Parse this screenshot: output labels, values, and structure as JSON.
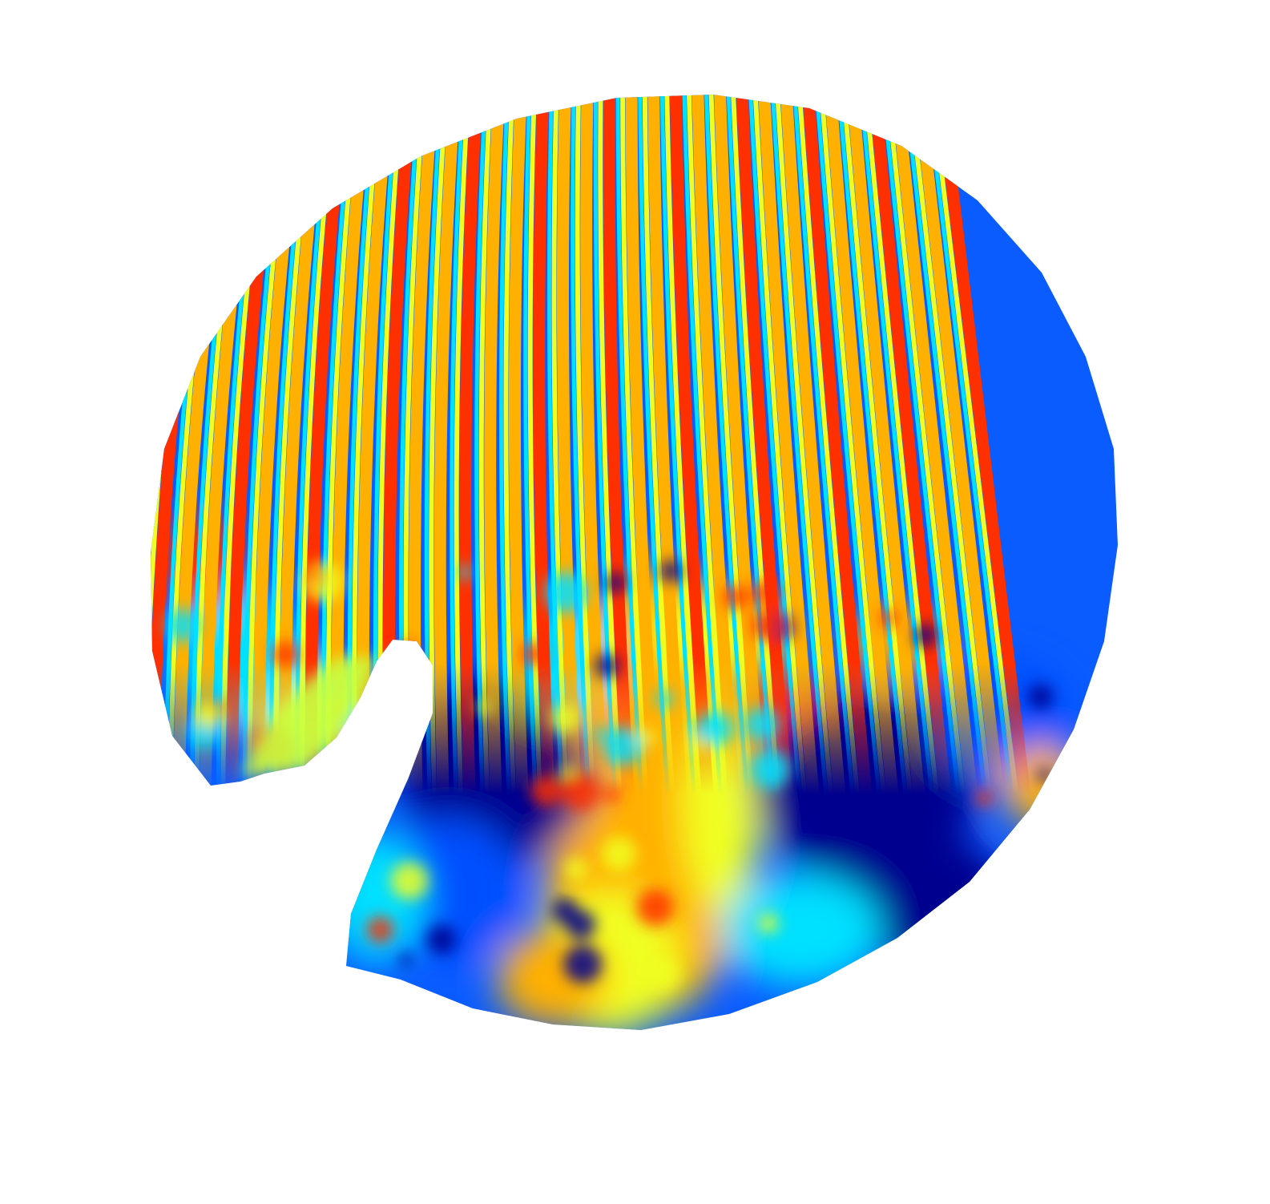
{
  "image": {
    "subject": "jet-colormap-surface-plot",
    "colormap": [
      "#00008f",
      "#0050ff",
      "#00e0ff",
      "#f0ff20",
      "#ffb000",
      "#ff3000",
      "#a00000"
    ],
    "background_color": "#ffffff",
    "stripe_count": 34
  }
}
